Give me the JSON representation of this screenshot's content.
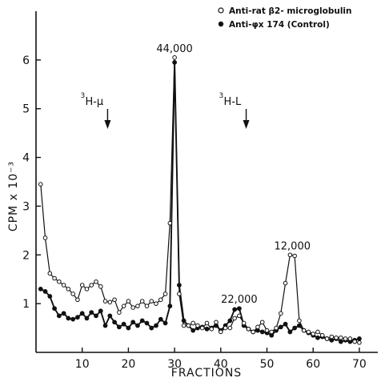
{
  "chart_data": {
    "type": "line",
    "title": "",
    "xlabel": "FRACTIONS",
    "ylabel": "CPM x 10⁻³",
    "xlim": [
      0,
      74
    ],
    "ylim": [
      0,
      7
    ],
    "xticks": [
      10,
      20,
      30,
      40,
      50,
      60,
      70
    ],
    "yticks": [
      1,
      2,
      3,
      4,
      5,
      6
    ],
    "grid": false,
    "legend_position": "top-right",
    "series": [
      {
        "name": "Anti-rat β2- microglobulin",
        "marker": "open-circle",
        "x": [
          1,
          2,
          3,
          4,
          5,
          6,
          7,
          8,
          9,
          10,
          11,
          12,
          13,
          14,
          15,
          16,
          17,
          18,
          19,
          20,
          21,
          22,
          23,
          24,
          25,
          26,
          27,
          28,
          29,
          30,
          31,
          32,
          33,
          34,
          35,
          36,
          37,
          38,
          39,
          40,
          41,
          42,
          43,
          44,
          45,
          46,
          47,
          48,
          49,
          50,
          51,
          52,
          53,
          54,
          55,
          56,
          57,
          58,
          59,
          60,
          61,
          62,
          63,
          64,
          65,
          66,
          67,
          68,
          69,
          70
        ],
        "values": [
          3.45,
          2.35,
          1.62,
          1.52,
          1.45,
          1.38,
          1.3,
          1.2,
          1.08,
          1.38,
          1.3,
          1.38,
          1.45,
          1.35,
          1.05,
          1.03,
          1.08,
          0.82,
          0.95,
          1.05,
          0.92,
          0.95,
          1.05,
          0.95,
          1.05,
          1.0,
          1.08,
          1.2,
          2.65,
          6.05,
          1.2,
          0.55,
          0.55,
          0.6,
          0.55,
          0.5,
          0.6,
          0.48,
          0.62,
          0.42,
          0.5,
          0.5,
          0.7,
          0.75,
          0.6,
          0.48,
          0.42,
          0.52,
          0.62,
          0.45,
          0.42,
          0.5,
          0.8,
          1.42,
          2.0,
          1.98,
          0.65,
          0.45,
          0.42,
          0.38,
          0.42,
          0.35,
          0.28,
          0.32,
          0.3,
          0.3,
          0.28,
          0.28,
          0.22,
          0.2
        ]
      },
      {
        "name": "Anti-φx 174 (Control)",
        "marker": "filled-circle",
        "x": [
          1,
          2,
          3,
          4,
          5,
          6,
          7,
          8,
          9,
          10,
          11,
          12,
          13,
          14,
          15,
          16,
          17,
          18,
          19,
          20,
          21,
          22,
          23,
          24,
          25,
          26,
          27,
          28,
          29,
          30,
          31,
          32,
          33,
          34,
          35,
          36,
          37,
          38,
          39,
          40,
          41,
          42,
          43,
          44,
          45,
          46,
          47,
          48,
          49,
          50,
          51,
          52,
          53,
          54,
          55,
          56,
          57,
          58,
          59,
          60,
          61,
          62,
          63,
          64,
          65,
          66,
          67,
          68,
          69,
          70
        ],
        "values": [
          1.3,
          1.25,
          1.15,
          0.9,
          0.75,
          0.8,
          0.7,
          0.68,
          0.72,
          0.8,
          0.7,
          0.82,
          0.75,
          0.85,
          0.55,
          0.75,
          0.62,
          0.52,
          0.58,
          0.5,
          0.62,
          0.55,
          0.65,
          0.6,
          0.5,
          0.55,
          0.68,
          0.6,
          0.95,
          5.95,
          1.38,
          0.65,
          0.55,
          0.45,
          0.5,
          0.52,
          0.48,
          0.5,
          0.55,
          0.45,
          0.55,
          0.65,
          0.88,
          0.9,
          0.55,
          0.48,
          0.42,
          0.45,
          0.42,
          0.4,
          0.35,
          0.45,
          0.52,
          0.58,
          0.42,
          0.5,
          0.55,
          0.45,
          0.4,
          0.35,
          0.3,
          0.32,
          0.28,
          0.25,
          0.28,
          0.22,
          0.25,
          0.22,
          0.25,
          0.28
        ]
      }
    ],
    "annotations": [
      {
        "text": "44,000",
        "x": 30,
        "y": 6.05
      },
      {
        "text": "22,000",
        "x": 44,
        "y": 0.9
      },
      {
        "text": "12,000",
        "x": 55.5,
        "y": 2.0
      }
    ],
    "markers": [
      {
        "label_main": "H-μ",
        "label_sup": "3",
        "x": 15.5
      },
      {
        "label_main": "H-L",
        "label_sup": "3",
        "x": 45.5
      }
    ]
  }
}
